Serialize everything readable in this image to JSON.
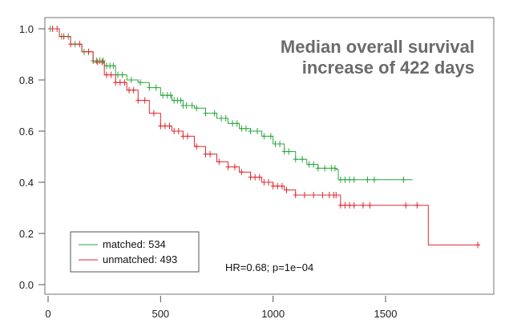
{
  "chart_data": {
    "type": "line",
    "subtype": "kaplan-meier step curves with censor marks",
    "title": "Median overall survival increase of 422 days",
    "title_lines": [
      "Median overall survival",
      "increase of 422 days"
    ],
    "xlabel": "",
    "ylabel": "",
    "xlim": [
      0,
      1950
    ],
    "ylim": [
      0,
      1.0
    ],
    "x_ticks": [
      0,
      500,
      1000,
      1500
    ],
    "x_tick_labels": [
      "0",
      "500",
      "1000",
      "1500"
    ],
    "y_ticks": [
      0.0,
      0.2,
      0.4,
      0.6,
      0.8,
      1.0
    ],
    "y_tick_labels": [
      "0.0",
      "0.2",
      "0.4",
      "0.6",
      "0.8",
      "1.0"
    ],
    "grid": false,
    "legend": {
      "placement": "bottom-left",
      "entries": [
        {
          "label": "matched: 534",
          "color": "#2aa63c"
        },
        {
          "label": "unmatched: 493",
          "color": "#e0282e"
        }
      ]
    },
    "annotation": "HR=0.68; p=1e−04",
    "series": [
      {
        "name": "matched",
        "n": 534,
        "color": "#2aa63c",
        "points": [
          [
            0,
            1.0
          ],
          [
            50,
            0.97
          ],
          [
            100,
            0.94
          ],
          [
            150,
            0.91
          ],
          [
            200,
            0.875
          ],
          [
            250,
            0.855
          ],
          [
            300,
            0.82
          ],
          [
            350,
            0.8
          ],
          [
            400,
            0.79
          ],
          [
            450,
            0.77
          ],
          [
            500,
            0.74
          ],
          [
            550,
            0.72
          ],
          [
            600,
            0.7
          ],
          [
            650,
            0.69
          ],
          [
            700,
            0.67
          ],
          [
            750,
            0.65
          ],
          [
            800,
            0.63
          ],
          [
            850,
            0.61
          ],
          [
            900,
            0.6
          ],
          [
            950,
            0.58
          ],
          [
            1000,
            0.55
          ],
          [
            1050,
            0.52
          ],
          [
            1100,
            0.49
          ],
          [
            1150,
            0.47
          ],
          [
            1200,
            0.455
          ],
          [
            1280,
            0.45
          ],
          [
            1290,
            0.41
          ],
          [
            1620,
            0.41
          ]
        ],
        "censor_times": [
          10,
          60,
          90,
          120,
          160,
          200,
          215,
          230,
          245,
          260,
          275,
          290,
          310,
          330,
          370,
          410,
          450,
          480,
          510,
          530,
          545,
          560,
          575,
          590,
          600,
          615,
          640,
          660,
          700,
          740,
          770,
          790,
          820,
          840,
          860,
          880,
          900,
          930,
          960,
          990,
          1010,
          1030,
          1050,
          1070,
          1100,
          1130,
          1160,
          1180,
          1200,
          1230,
          1260,
          1275,
          1300,
          1320,
          1340,
          1360,
          1420,
          1450,
          1580
        ]
      },
      {
        "name": "unmatched",
        "n": 493,
        "color": "#e0282e",
        "points": [
          [
            0,
            1.0
          ],
          [
            50,
            0.97
          ],
          [
            100,
            0.94
          ],
          [
            150,
            0.91
          ],
          [
            200,
            0.87
          ],
          [
            250,
            0.82
          ],
          [
            300,
            0.79
          ],
          [
            350,
            0.76
          ],
          [
            400,
            0.72
          ],
          [
            450,
            0.67
          ],
          [
            500,
            0.62
          ],
          [
            550,
            0.6
          ],
          [
            600,
            0.58
          ],
          [
            650,
            0.54
          ],
          [
            700,
            0.51
          ],
          [
            750,
            0.48
          ],
          [
            800,
            0.46
          ],
          [
            850,
            0.44
          ],
          [
            900,
            0.42
          ],
          [
            950,
            0.4
          ],
          [
            1000,
            0.385
          ],
          [
            1050,
            0.37
          ],
          [
            1100,
            0.35
          ],
          [
            1250,
            0.35
          ],
          [
            1300,
            0.31
          ],
          [
            1690,
            0.3
          ],
          [
            1690,
            0.155
          ],
          [
            1920,
            0.155
          ]
        ],
        "censor_times": [
          20,
          40,
          70,
          100,
          140,
          180,
          220,
          240,
          260,
          280,
          300,
          320,
          340,
          360,
          380,
          400,
          430,
          470,
          500,
          520,
          540,
          560,
          580,
          600,
          620,
          660,
          700,
          720,
          760,
          800,
          830,
          860,
          900,
          920,
          940,
          960,
          980,
          1000,
          1020,
          1040,
          1060,
          1100,
          1140,
          1180,
          1220,
          1250,
          1270,
          1280,
          1300,
          1320,
          1340,
          1360,
          1400,
          1430,
          1590,
          1640,
          1910
        ]
      }
    ]
  }
}
